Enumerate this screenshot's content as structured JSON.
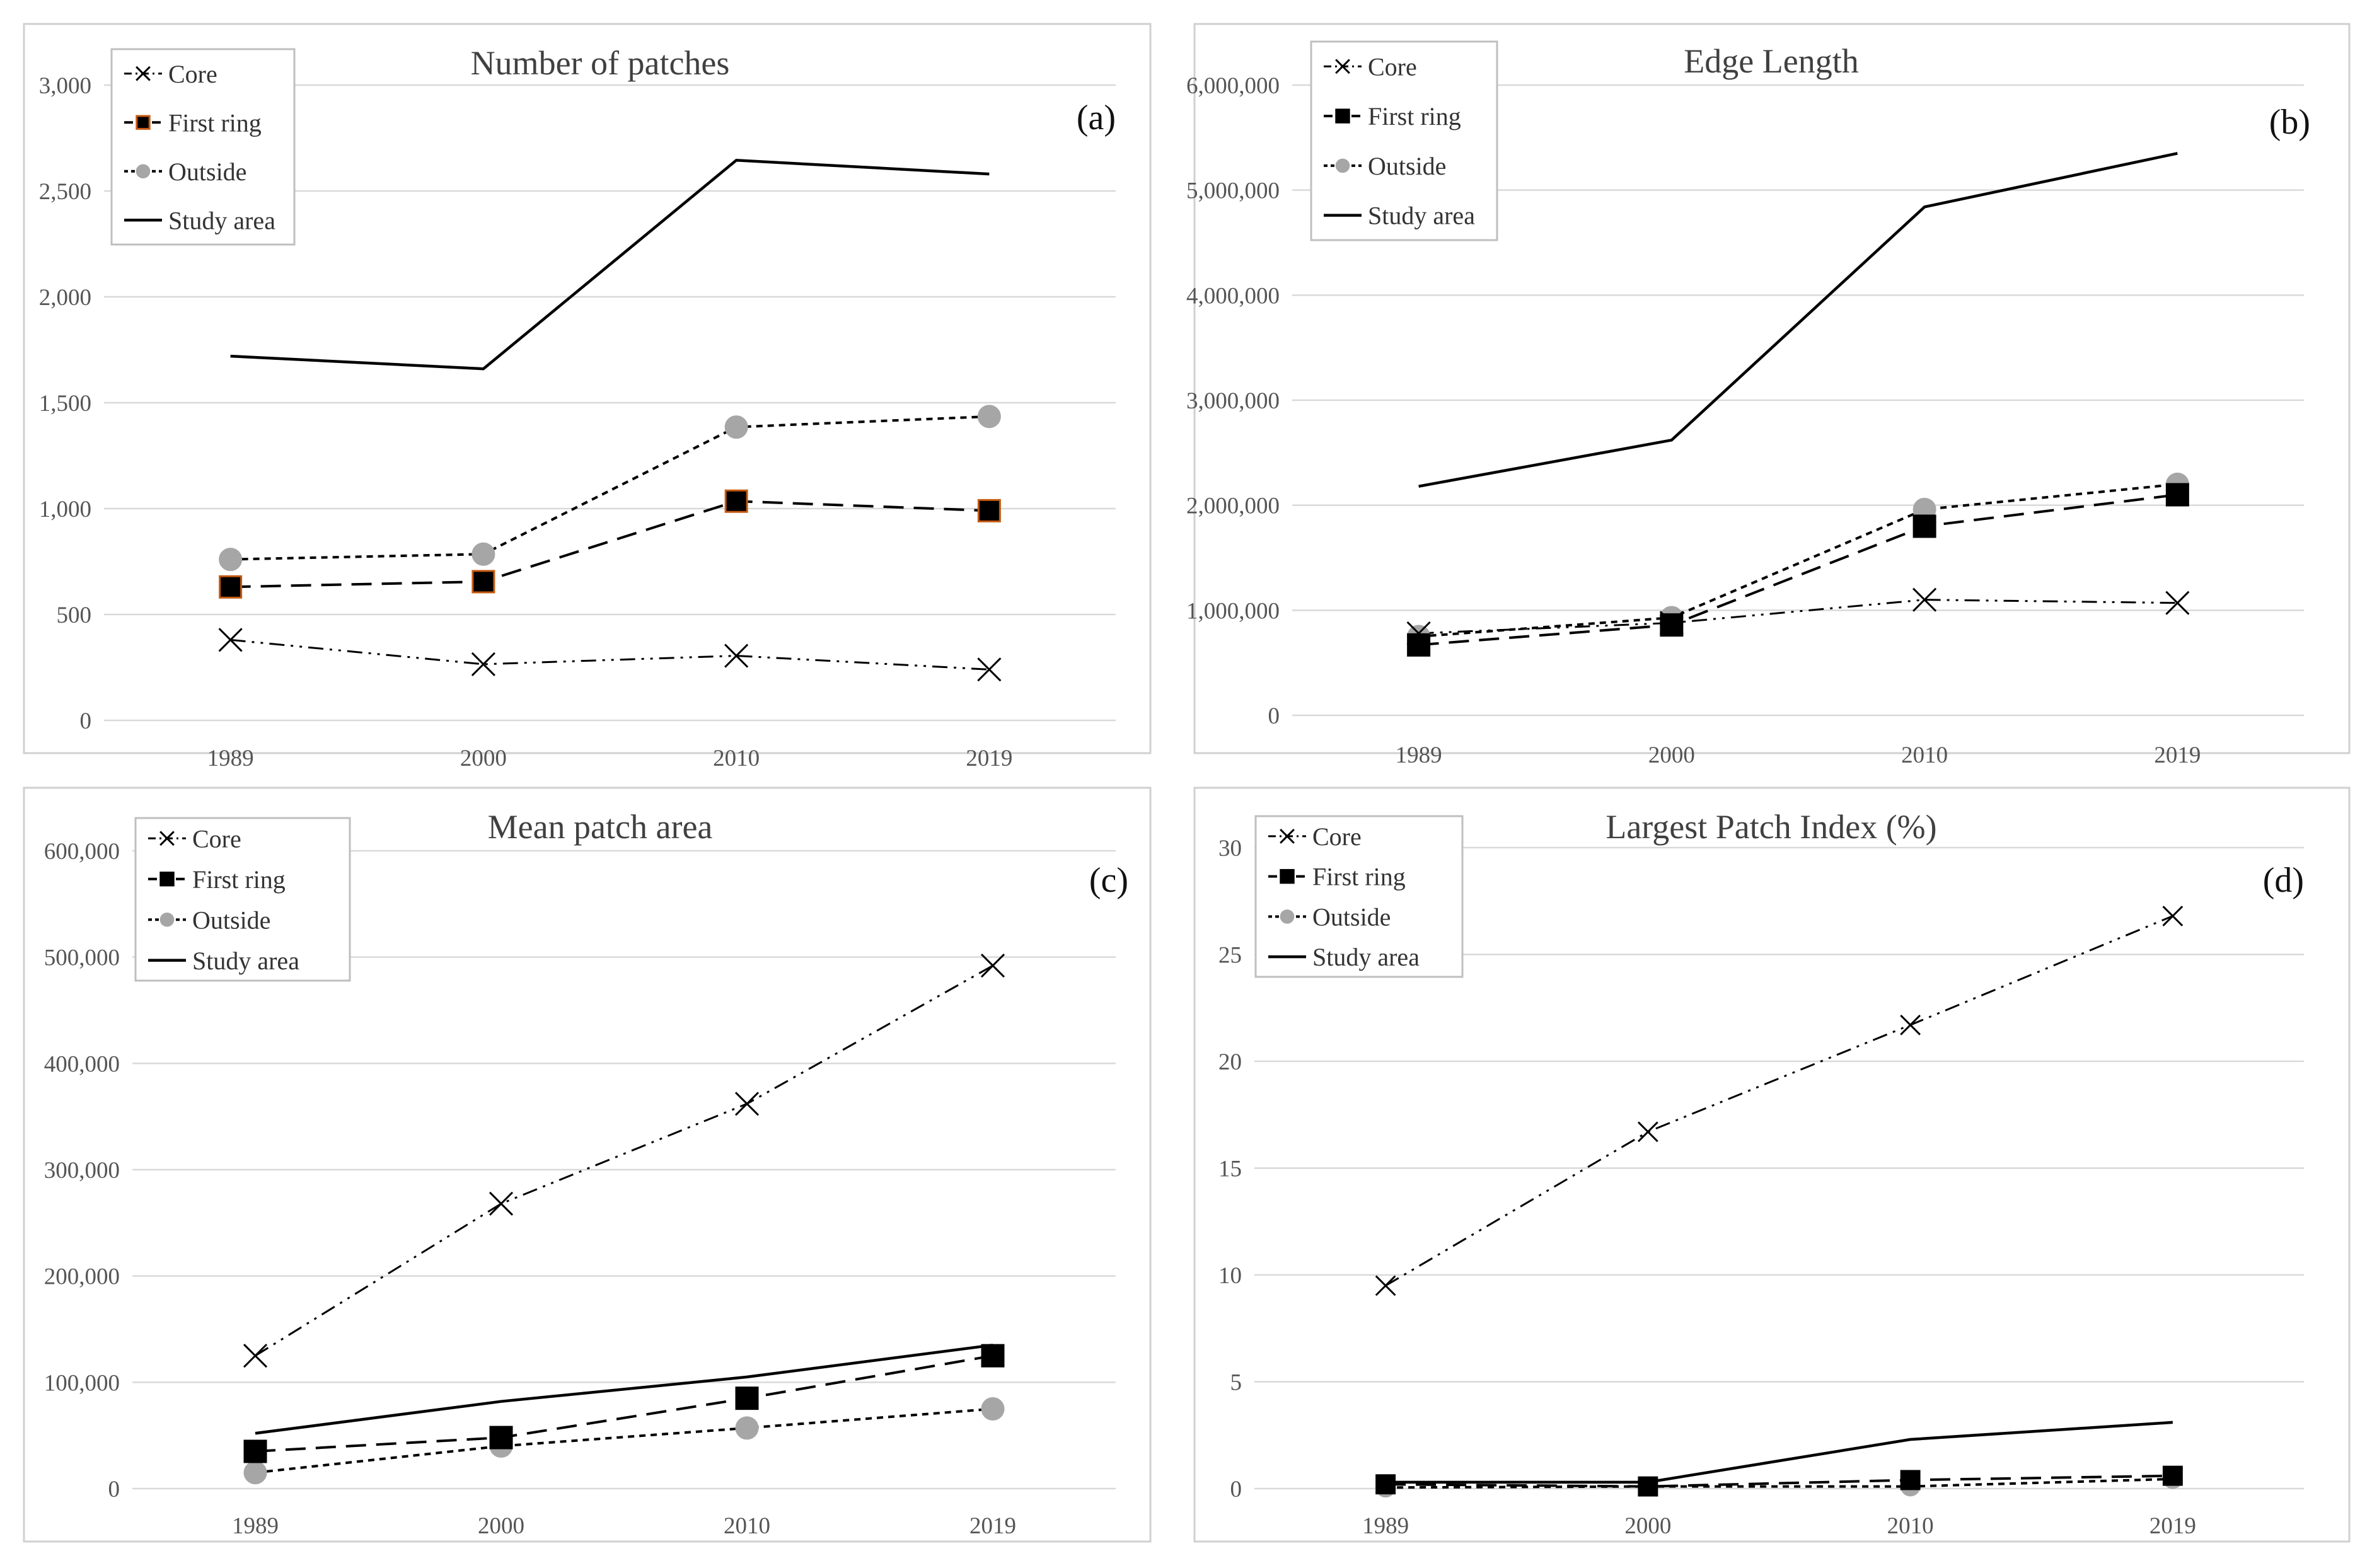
{
  "colors": {
    "line": "#000000",
    "outside_marker": "#a6a6a6",
    "grid": "#d9d9d9",
    "frame": "#d0d0d0",
    "first_ring_marker_edge_a": "#c55a11"
  },
  "chart_data": [
    {
      "type": "line",
      "title": "Number of patches",
      "label": "(a)",
      "categories": [
        "1989",
        "2000",
        "2010",
        "2019"
      ],
      "ylim": [
        0,
        3000
      ],
      "yticks": [
        0,
        500,
        1000,
        1500,
        2000,
        2500,
        3000
      ],
      "ytick_labels": [
        "0",
        "500",
        "1,000",
        "1,500",
        "2,000",
        "2,500",
        "3,000"
      ],
      "legend": [
        "Core",
        "First ring",
        "Outside",
        "Study area"
      ],
      "legend_position": "top-left",
      "series": [
        {
          "name": "Core",
          "values": [
            380,
            265,
            305,
            240
          ]
        },
        {
          "name": "First ring",
          "values": [
            630,
            655,
            1035,
            990
          ]
        },
        {
          "name": "Outside",
          "values": [
            760,
            785,
            1385,
            1435
          ]
        },
        {
          "name": "Study area",
          "values": [
            1720,
            1660,
            2645,
            2580
          ]
        }
      ]
    },
    {
      "type": "line",
      "title": "Edge Length",
      "label": "(b)",
      "categories": [
        "1989",
        "2000",
        "2010",
        "2019"
      ],
      "ylim": [
        0,
        6000000
      ],
      "yticks": [
        0,
        1000000,
        2000000,
        3000000,
        4000000,
        5000000,
        6000000
      ],
      "ytick_labels": [
        "0",
        "1,000,000",
        "2,000,000",
        "3,000,000",
        "4,000,000",
        "5,000,000",
        "6,000,000"
      ],
      "legend": [
        "Core",
        "First ring",
        "Outside",
        "Study area"
      ],
      "legend_position": "top-left",
      "series": [
        {
          "name": "Core",
          "values": [
            780000,
            880000,
            1100000,
            1070000
          ]
        },
        {
          "name": "First ring",
          "values": [
            670000,
            860000,
            1800000,
            2100000
          ]
        },
        {
          "name": "Outside",
          "values": [
            750000,
            930000,
            1960000,
            2200000
          ]
        },
        {
          "name": "Study area",
          "values": [
            2180000,
            2620000,
            4840000,
            5350000
          ]
        }
      ]
    },
    {
      "type": "line",
      "title": "Mean patch area",
      "label": "(c)",
      "categories": [
        "1989",
        "2000",
        "2010",
        "2019"
      ],
      "ylim": [
        0,
        600000
      ],
      "yticks": [
        0,
        100000,
        200000,
        300000,
        400000,
        500000,
        600000
      ],
      "ytick_labels": [
        "0",
        "100,000",
        "200,000",
        "300,000",
        "400,000",
        "500,000",
        "600,000"
      ],
      "legend": [
        "Core",
        "First ring",
        "Outside",
        "Study area"
      ],
      "legend_position": "top-left",
      "series": [
        {
          "name": "Core",
          "values": [
            125000,
            268000,
            362000,
            492000
          ]
        },
        {
          "name": "First ring",
          "values": [
            35000,
            48000,
            85000,
            125000
          ]
        },
        {
          "name": "Outside",
          "values": [
            15000,
            40000,
            57000,
            75000
          ]
        },
        {
          "name": "Study area",
          "values": [
            52000,
            82000,
            105000,
            135000
          ]
        }
      ]
    },
    {
      "type": "line",
      "title": "Largest Patch Index (%)",
      "label": "(d)",
      "categories": [
        "1989",
        "2000",
        "2010",
        "2019"
      ],
      "ylim": [
        0,
        30
      ],
      "yticks": [
        0,
        5,
        10,
        15,
        20,
        25,
        30
      ],
      "ytick_labels": [
        "0",
        "5",
        "10",
        "15",
        "20",
        "25",
        "30"
      ],
      "legend": [
        "Core",
        "First ring",
        "Outside",
        "Study area"
      ],
      "legend_position": "top-left",
      "series": [
        {
          "name": "Core",
          "values": [
            9.5,
            16.7,
            21.7,
            26.8
          ]
        },
        {
          "name": "First ring",
          "values": [
            0.2,
            0.1,
            0.4,
            0.6
          ]
        },
        {
          "name": "Outside",
          "values": [
            0.05,
            0.1,
            0.1,
            0.45
          ]
        },
        {
          "name": "Study area",
          "values": [
            0.3,
            0.3,
            2.3,
            3.1
          ]
        }
      ]
    }
  ]
}
